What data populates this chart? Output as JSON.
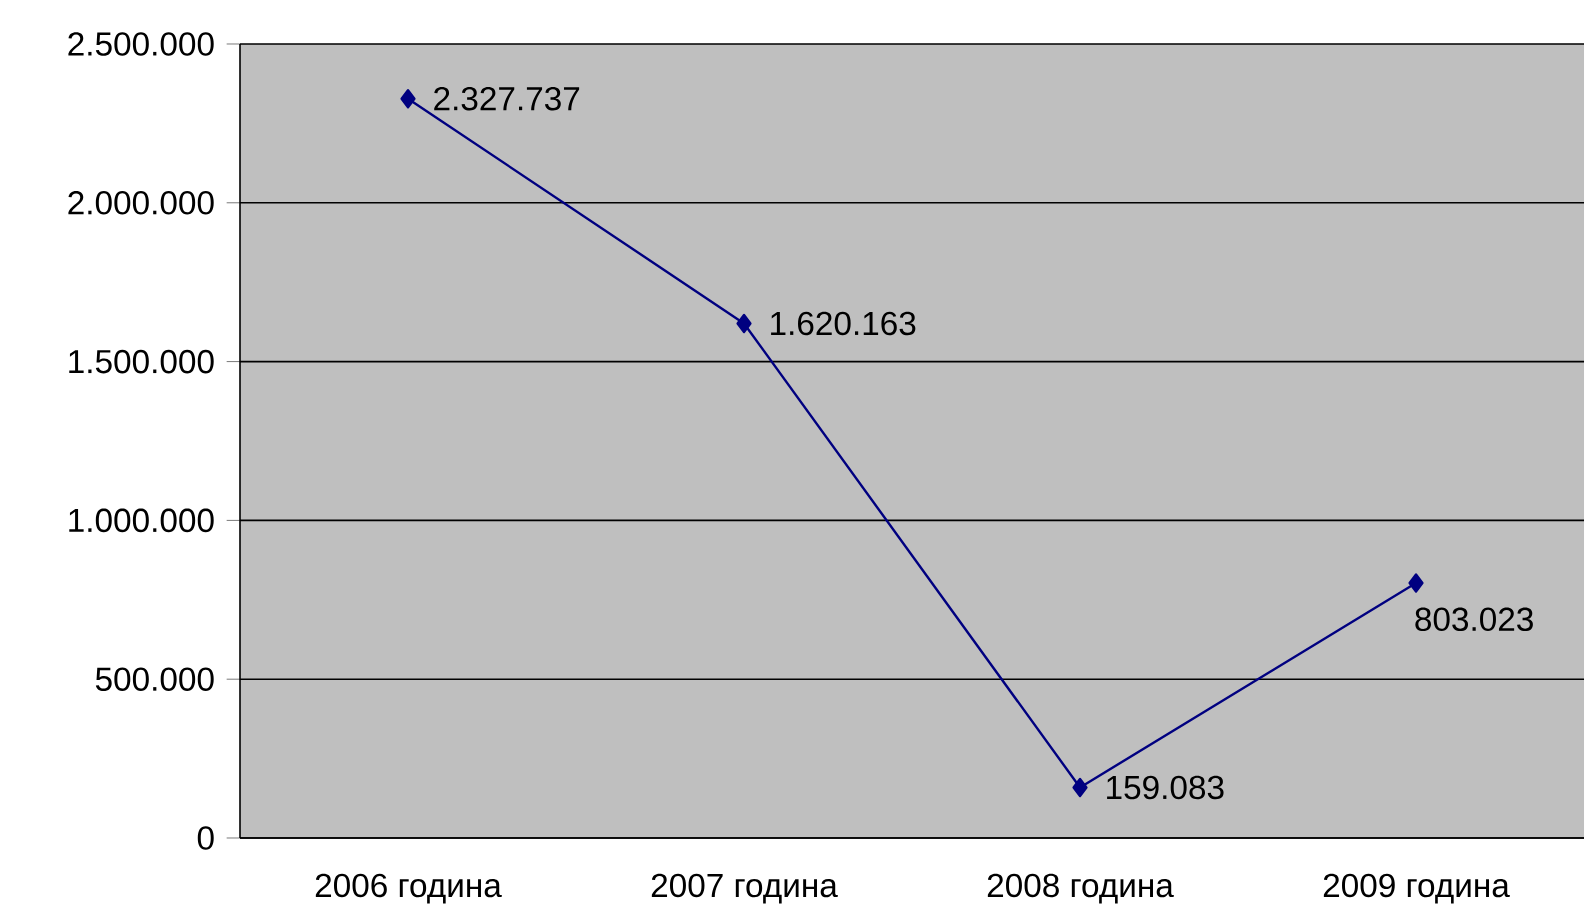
{
  "chart_data": {
    "type": "line",
    "categories": [
      "2006 година",
      "2007 година",
      "2008 година",
      "2009 година"
    ],
    "series": [
      {
        "color": "#000080",
        "values": [
          2327737,
          1620163,
          159083,
          803023
        ],
        "value_labels": [
          "2.327.737",
          "1.620.163",
          "159.083",
          "803.023"
        ]
      }
    ],
    "ylim": [
      0,
      2500000
    ],
    "yticks": [
      {
        "value": 0,
        "label": "0"
      },
      {
        "value": 500000,
        "label": "500.000"
      },
      {
        "value": 1000000,
        "label": "1.000.000"
      },
      {
        "value": 1500000,
        "label": "1.500.000"
      },
      {
        "value": 2000000,
        "label": "2.000.000"
      },
      {
        "value": 2500000,
        "label": "2.500.000"
      }
    ],
    "grid": "y",
    "marker": "diamond"
  }
}
